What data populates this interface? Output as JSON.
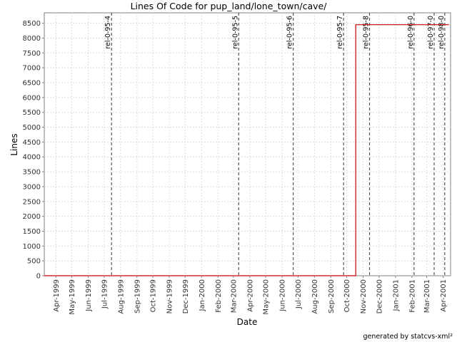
{
  "chart_data": {
    "type": "line",
    "title": "Lines Of Code for pup_land/lone_town/cave/",
    "xlabel": "Date",
    "ylabel": "Lines",
    "footer": "generated by statcvs-xml²",
    "x_range": [
      "1999-03-10",
      "2001-04-15"
    ],
    "ylim": [
      0,
      8850
    ],
    "y_ticks": [
      0,
      500,
      1000,
      1500,
      2000,
      2500,
      3000,
      3500,
      4000,
      4500,
      5000,
      5500,
      6000,
      6500,
      7000,
      7500,
      8000,
      8500
    ],
    "x_ticks": [
      {
        "label": "Apr-1999",
        "date": "1999-04-01"
      },
      {
        "label": "May-1999",
        "date": "1999-05-01"
      },
      {
        "label": "Jun-1999",
        "date": "1999-06-01"
      },
      {
        "label": "Jul-1999",
        "date": "1999-07-01"
      },
      {
        "label": "Aug-1999",
        "date": "1999-08-01"
      },
      {
        "label": "Sep-1999",
        "date": "1999-09-01"
      },
      {
        "label": "Oct-1999",
        "date": "1999-10-01"
      },
      {
        "label": "Nov-1999",
        "date": "1999-11-01"
      },
      {
        "label": "Dec-1999",
        "date": "1999-12-01"
      },
      {
        "label": "Jan-2000",
        "date": "2000-01-01"
      },
      {
        "label": "Feb-2000",
        "date": "2000-02-01"
      },
      {
        "label": "Mar-2000",
        "date": "2000-03-01"
      },
      {
        "label": "Apr-2000",
        "date": "2000-04-01"
      },
      {
        "label": "May-2000",
        "date": "2000-05-01"
      },
      {
        "label": "Jun-2000",
        "date": "2000-06-01"
      },
      {
        "label": "Jul-2000",
        "date": "2000-07-01"
      },
      {
        "label": "Aug-2000",
        "date": "2000-08-01"
      },
      {
        "label": "Sep-2000",
        "date": "2000-09-01"
      },
      {
        "label": "Oct-2000",
        "date": "2000-10-01"
      },
      {
        "label": "Nov-2000",
        "date": "2000-11-01"
      },
      {
        "label": "Dec-2000",
        "date": "2000-12-01"
      },
      {
        "label": "Jan-2001",
        "date": "2001-01-01"
      },
      {
        "label": "Feb-2001",
        "date": "2001-02-01"
      },
      {
        "label": "Mar-2001",
        "date": "2001-03-01"
      },
      {
        "label": "Apr-2001",
        "date": "2001-04-01"
      }
    ],
    "grid": true,
    "series": [
      {
        "color": "#cc0000",
        "step": true,
        "points": [
          {
            "x": "1999-03-10",
            "y": 0
          },
          {
            "x": "2000-10-18",
            "y": 0
          },
          {
            "x": "2000-10-18",
            "y": 8450
          },
          {
            "x": "2001-04-12",
            "y": 8450
          }
        ]
      }
    ],
    "markers": [
      {
        "label": "rel-0-95-4",
        "date": "1999-07-15"
      },
      {
        "label": "rel-0-95-5",
        "date": "2000-03-11"
      },
      {
        "label": "rel-0-95-6",
        "date": "2000-06-22"
      },
      {
        "label": "rel-0-95-7",
        "date": "2000-09-25"
      },
      {
        "label": "rel-0-95-8",
        "date": "2000-11-13"
      },
      {
        "label": "rel-0-96-0",
        "date": "2001-02-05"
      },
      {
        "label": "rel-0-97-0",
        "date": "2001-03-15"
      },
      {
        "label": "rel-0-98-0",
        "date": "2001-04-04"
      }
    ]
  }
}
